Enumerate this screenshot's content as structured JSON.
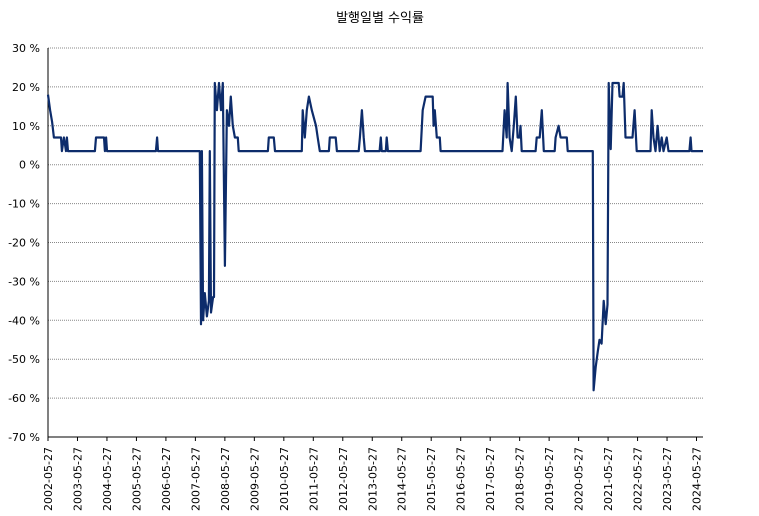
{
  "chart_data": {
    "type": "line",
    "title": "발행일별 수익률",
    "xlim": [
      2002.4,
      2024.62
    ],
    "xticks": [
      {
        "value": 2002.4,
        "label": "2002-05-27"
      },
      {
        "value": 2003.4,
        "label": "2003-05-27"
      },
      {
        "value": 2004.4,
        "label": "2004-05-27"
      },
      {
        "value": 2005.4,
        "label": "2005-05-27"
      },
      {
        "value": 2006.4,
        "label": "2006-05-27"
      },
      {
        "value": 2007.4,
        "label": "2007-05-27"
      },
      {
        "value": 2008.4,
        "label": "2008-05-27"
      },
      {
        "value": 2009.4,
        "label": "2009-05-27"
      },
      {
        "value": 2010.4,
        "label": "2010-05-27"
      },
      {
        "value": 2011.4,
        "label": "2011-05-27"
      },
      {
        "value": 2012.4,
        "label": "2012-05-27"
      },
      {
        "value": 2013.4,
        "label": "2013-05-27"
      },
      {
        "value": 2014.4,
        "label": "2014-05-27"
      },
      {
        "value": 2015.4,
        "label": "2015-05-27"
      },
      {
        "value": 2016.4,
        "label": "2016-05-27"
      },
      {
        "value": 2017.4,
        "label": "2017-05-27"
      },
      {
        "value": 2018.4,
        "label": "2018-05-27"
      },
      {
        "value": 2019.4,
        "label": "2019-05-27"
      },
      {
        "value": 2020.4,
        "label": "2020-05-27"
      },
      {
        "value": 2021.4,
        "label": "2021-05-27"
      },
      {
        "value": 2022.4,
        "label": "2022-05-27"
      },
      {
        "value": 2023.4,
        "label": "2023-05-27"
      },
      {
        "value": 2024.4,
        "label": "2024-05-27"
      }
    ],
    "ylim": [
      -70,
      30
    ],
    "yticks": [
      {
        "value": 30,
        "label": "30 %"
      },
      {
        "value": 20,
        "label": "20 %"
      },
      {
        "value": 10,
        "label": "10 %"
      },
      {
        "value": 0,
        "label": "0 %"
      },
      {
        "value": -10,
        "label": "-10 %"
      },
      {
        "value": -20,
        "label": "-20 %"
      },
      {
        "value": -30,
        "label": "-30 %"
      },
      {
        "value": -40,
        "label": "-40 %"
      },
      {
        "value": -50,
        "label": "-50 %"
      },
      {
        "value": -60,
        "label": "-60 %"
      },
      {
        "value": -70,
        "label": "-70 %"
      }
    ],
    "grid": true,
    "color": "#0d2c6b",
    "x": [
      2002.4,
      2002.47,
      2002.54,
      2002.6,
      2002.84,
      2002.87,
      2002.94,
      2003.01,
      2003.04,
      2003.08,
      2003.99,
      2004.03,
      2004.3,
      2004.33,
      2004.37,
      2004.4,
      2006.06,
      2006.1,
      2006.13,
      2007.55,
      2007.59,
      2007.62,
      2007.66,
      2007.72,
      2007.79,
      2007.86,
      2007.89,
      2007.93,
      2008.0,
      2008.03,
      2008.06,
      2008.13,
      2008.2,
      2008.27,
      2008.33,
      2008.4,
      2008.47,
      2008.54,
      2008.6,
      2008.67,
      2008.74,
      2008.84,
      2008.87,
      2009.86,
      2009.89,
      2010.06,
      2010.1,
      2011.01,
      2011.04,
      2011.11,
      2011.18,
      2011.25,
      2011.35,
      2011.49,
      2011.55,
      2011.62,
      2011.93,
      2011.96,
      2012.16,
      2012.2,
      2012.94,
      2012.98,
      2013.05,
      2013.11,
      2013.15,
      2013.65,
      2013.69,
      2013.72,
      2013.86,
      2013.89,
      2013.93,
      2015.04,
      2015.11,
      2015.21,
      2015.45,
      2015.48,
      2015.52,
      2015.59,
      2015.69,
      2015.72,
      2017.82,
      2017.89,
      2017.96,
      2017.99,
      2018.06,
      2018.13,
      2018.2,
      2018.27,
      2018.33,
      2018.4,
      2018.43,
      2018.47,
      2018.94,
      2018.98,
      2019.08,
      2019.15,
      2019.22,
      2019.59,
      2019.62,
      2019.72,
      2019.79,
      2020.0,
      2020.03,
      2020.88,
      2020.91,
      2020.98,
      2021.05,
      2021.11,
      2021.18,
      2021.25,
      2021.32,
      2021.38,
      2021.42,
      2021.49,
      2021.55,
      2021.76,
      2021.79,
      2021.89,
      2021.93,
      2021.99,
      2022.23,
      2022.3,
      2022.37,
      2022.84,
      2022.88,
      2022.94,
      2023.01,
      2023.08,
      2023.15,
      2023.22,
      2023.28,
      2023.39,
      2023.45,
      2024.16,
      2024.2,
      2024.23,
      2024.62
    ],
    "values": [
      18,
      14,
      11,
      7,
      7,
      3.5,
      7,
      3.5,
      7,
      3.5,
      3.5,
      7,
      7,
      3.5,
      7,
      3.5,
      3.5,
      7,
      3.5,
      3.5,
      -41,
      3.5,
      -40,
      -33,
      -39,
      -35,
      3.5,
      -38,
      -34,
      -34,
      21,
      14,
      21,
      14,
      21,
      -26,
      14,
      10,
      17.5,
      10,
      7,
      7,
      3.5,
      3.5,
      7,
      7,
      3.5,
      3.5,
      14,
      7,
      14,
      17.5,
      14,
      10,
      7,
      3.5,
      3.5,
      7,
      7,
      3.5,
      3.5,
      7,
      14,
      7,
      3.5,
      3.5,
      7,
      3.5,
      3.5,
      7,
      3.5,
      3.5,
      14,
      17.5,
      17.5,
      10,
      14,
      7,
      7,
      3.5,
      3.5,
      14,
      7,
      21,
      7,
      3.5,
      10,
      17.5,
      7,
      7,
      10,
      3.5,
      3.5,
      7,
      7,
      14,
      3.5,
      3.5,
      7,
      10,
      7,
      7,
      3.5,
      3.5,
      -58,
      -52,
      -48,
      -45,
      -46,
      -35,
      -41,
      -36,
      21,
      4,
      21,
      21,
      17.5,
      17.5,
      21,
      7,
      7,
      14,
      3.5,
      3.5,
      14,
      7,
      3.5,
      10,
      3.5,
      7,
      3.5,
      7,
      3.5,
      3.5,
      7,
      3.5,
      3.5
    ]
  }
}
